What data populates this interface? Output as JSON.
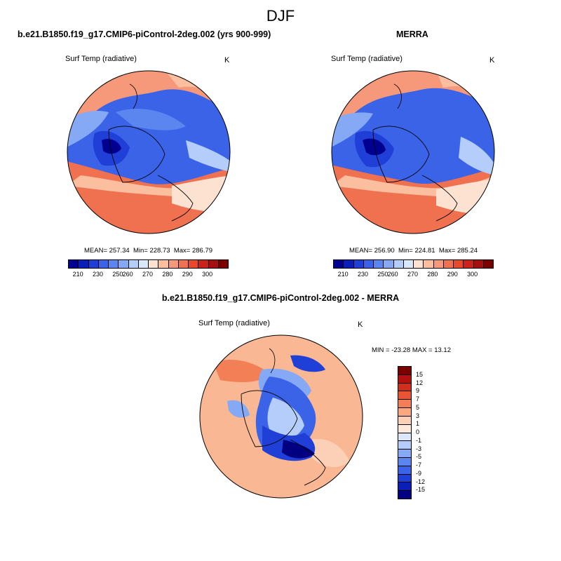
{
  "title": "DJF",
  "panels": {
    "model": {
      "title": "b.e21.B1850.f19_g17.CMIP6-piControl-2deg.002 (yrs 900-999)",
      "variable": "Surf Temp (radiative)",
      "units": "K",
      "mean": "257.34",
      "min": "228.73",
      "max": "286.79"
    },
    "obs": {
      "title": "MERRA",
      "variable": "Surf Temp (radiative)",
      "units": "K",
      "mean": "256.90",
      "min": "224.81",
      "max": "285.24"
    },
    "diff": {
      "title": "b.e21.B1850.f19_g17.CMIP6-piControl-2deg.002 - MERRA",
      "variable": "Surf Temp (radiative)",
      "units": "K",
      "min_label": "MIN = -23.28 MAX =  13.12"
    }
  },
  "labels": {
    "mean": "MEAN=",
    "min": "Min=",
    "max": "Max="
  },
  "colorbar_abs": {
    "colors": [
      "#000090",
      "#0b1fb8",
      "#1f3fd6",
      "#3a63e8",
      "#5b86f0",
      "#86a9f5",
      "#b5cdfa",
      "#dbe8fc",
      "#fde2d2",
      "#fbbfa0",
      "#f6987a",
      "#f07150",
      "#e74a2a",
      "#c9231a",
      "#a50f0f",
      "#7a0000"
    ],
    "ticks": [
      "210",
      "230",
      "250",
      "260",
      "270",
      "280",
      "290",
      "300"
    ]
  },
  "colorbar_diff": {
    "colors": [
      "#7a0000",
      "#b51010",
      "#d22e1c",
      "#e75534",
      "#f27f55",
      "#f8a982",
      "#fcd0b6",
      "#fde9dc",
      "#dbe8fc",
      "#b5cdfa",
      "#86a9f5",
      "#5b86f0",
      "#3a63e8",
      "#1f3fd6",
      "#0b1fb8",
      "#000080"
    ],
    "ticks": [
      "15",
      "12",
      "9",
      "7",
      "5",
      "3",
      "1",
      "0",
      "-1",
      "-3",
      "-5",
      "-7",
      "-9",
      "-12",
      "-15"
    ]
  }
}
